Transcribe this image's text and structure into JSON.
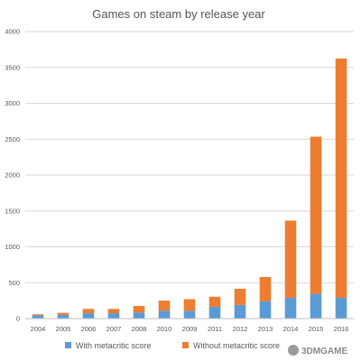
{
  "chart_data": {
    "type": "bar",
    "stacked": true,
    "title": "Games on steam by release year",
    "xlabel": "",
    "ylabel": "",
    "ylim": [
      0,
      4000
    ],
    "yticks": [
      0,
      500,
      1000,
      1500,
      2000,
      2500,
      3000,
      3500,
      4000
    ],
    "grid": true,
    "legend_position": "bottom",
    "categories": [
      "2004",
      "2005",
      "2006",
      "2007",
      "2008",
      "2010",
      "2009",
      "2011",
      "2012",
      "2013",
      "2014",
      "2015",
      "2016"
    ],
    "series": [
      {
        "name": "With metacritic score",
        "color": "#5b9bd5",
        "values": [
          45,
          55,
          75,
          75,
          85,
          110,
          110,
          165,
          190,
          240,
          290,
          345,
          290
        ]
      },
      {
        "name": "Without metacritic score",
        "color": "#ed7d31",
        "values": [
          15,
          25,
          60,
          60,
          90,
          140,
          160,
          140,
          225,
          340,
          1075,
          2190,
          3335
        ]
      }
    ]
  },
  "watermark": "3DMGAME"
}
